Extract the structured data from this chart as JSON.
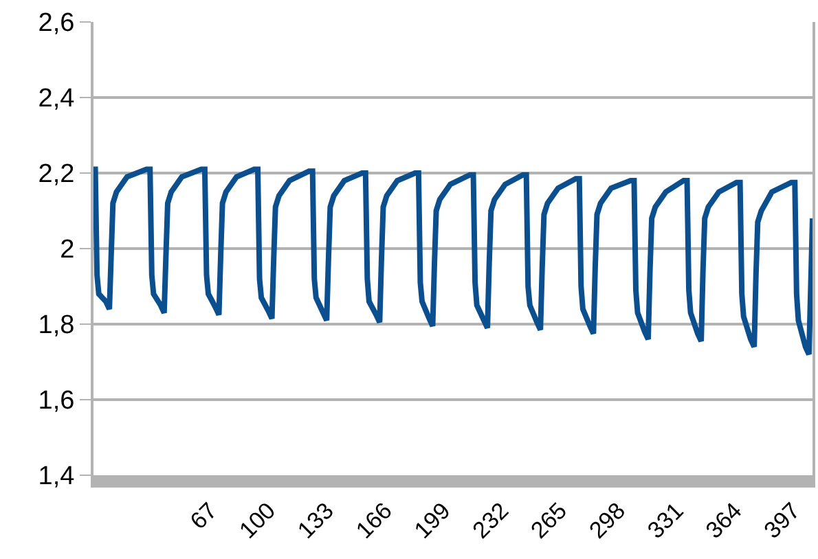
{
  "chart_data": {
    "type": "line",
    "grid": "y",
    "marker": "none",
    "line_style": "solid",
    "xlim": [
      1,
      408
    ],
    "xticks": [
      67,
      100,
      133,
      166,
      199,
      232,
      265,
      298,
      331,
      364,
      397
    ],
    "ylim": [
      1.4,
      2.6
    ],
    "yticks": [
      {
        "value": 1.4,
        "label": "1,4"
      },
      {
        "value": 1.6,
        "label": "1,6"
      },
      {
        "value": 1.8,
        "label": "1,8"
      },
      2,
      {
        "value": 2.2,
        "label": "2,2"
      },
      {
        "value": 2.4,
        "label": "2,4"
      },
      {
        "value": 2.6,
        "label": "2,6"
      }
    ],
    "series": [
      {
        "color": "#0b4f8f",
        "x": [
          1,
          2,
          3,
          4,
          8,
          10,
          11,
          12,
          14,
          20,
          31,
          33,
          34,
          35,
          39,
          41,
          42,
          43,
          45,
          51,
          62,
          64,
          65,
          66,
          70,
          72,
          73,
          74,
          76,
          82,
          92,
          94,
          95,
          96,
          100,
          102,
          103,
          104,
          106,
          112,
          123,
          125,
          126,
          127,
          131,
          133,
          134,
          135,
          137,
          143,
          153,
          155,
          156,
          157,
          161,
          163,
          164,
          165,
          167,
          173,
          183,
          185,
          186,
          187,
          191,
          193,
          194,
          195,
          197,
          203,
          214,
          216,
          217,
          218,
          222,
          224,
          225,
          226,
          228,
          234,
          244,
          246,
          247,
          248,
          252,
          254,
          255,
          256,
          258,
          264,
          274,
          276,
          277,
          278,
          282,
          284,
          285,
          286,
          288,
          294,
          305,
          307,
          308,
          309,
          313,
          315,
          316,
          317,
          319,
          325,
          335,
          337,
          338,
          339,
          343,
          345,
          346,
          347,
          349,
          355,
          365,
          367,
          368,
          369,
          373,
          375,
          376,
          377,
          379,
          385,
          396,
          398,
          399,
          400,
          404,
          406,
          408
        ],
        "values": [
          2.21,
          2.21,
          1.93,
          1.88,
          1.86,
          1.84,
          1.98,
          2.12,
          2.15,
          2.19,
          2.21,
          2.21,
          1.93,
          1.88,
          1.85,
          1.83,
          1.98,
          2.12,
          2.15,
          2.19,
          2.21,
          2.21,
          1.93,
          1.88,
          1.845,
          1.825,
          1.98,
          2.12,
          2.15,
          2.19,
          2.21,
          2.21,
          1.92,
          1.87,
          1.835,
          1.815,
          1.97,
          2.11,
          2.14,
          2.18,
          2.205,
          2.205,
          1.92,
          1.87,
          1.83,
          1.81,
          1.97,
          2.11,
          2.14,
          2.18,
          2.2,
          2.2,
          1.92,
          1.86,
          1.825,
          1.805,
          1.97,
          2.11,
          2.14,
          2.18,
          2.2,
          2.2,
          1.91,
          1.86,
          1.815,
          1.795,
          1.96,
          2.1,
          2.13,
          2.17,
          2.195,
          2.195,
          1.91,
          1.85,
          1.81,
          1.79,
          1.96,
          2.1,
          2.13,
          2.17,
          2.195,
          2.195,
          1.9,
          1.85,
          1.805,
          1.785,
          1.95,
          2.09,
          2.12,
          2.16,
          2.185,
          2.185,
          1.9,
          1.84,
          1.795,
          1.775,
          1.95,
          2.09,
          2.12,
          2.16,
          2.18,
          2.18,
          1.89,
          1.83,
          1.78,
          1.76,
          1.94,
          2.08,
          2.11,
          2.15,
          2.18,
          2.18,
          1.89,
          1.83,
          1.775,
          1.755,
          1.94,
          2.08,
          2.11,
          2.15,
          2.175,
          2.175,
          1.88,
          1.82,
          1.76,
          1.74,
          1.93,
          2.07,
          2.1,
          2.15,
          2.175,
          2.175,
          1.88,
          1.81,
          1.74,
          1.72,
          2.08
        ]
      }
    ]
  }
}
